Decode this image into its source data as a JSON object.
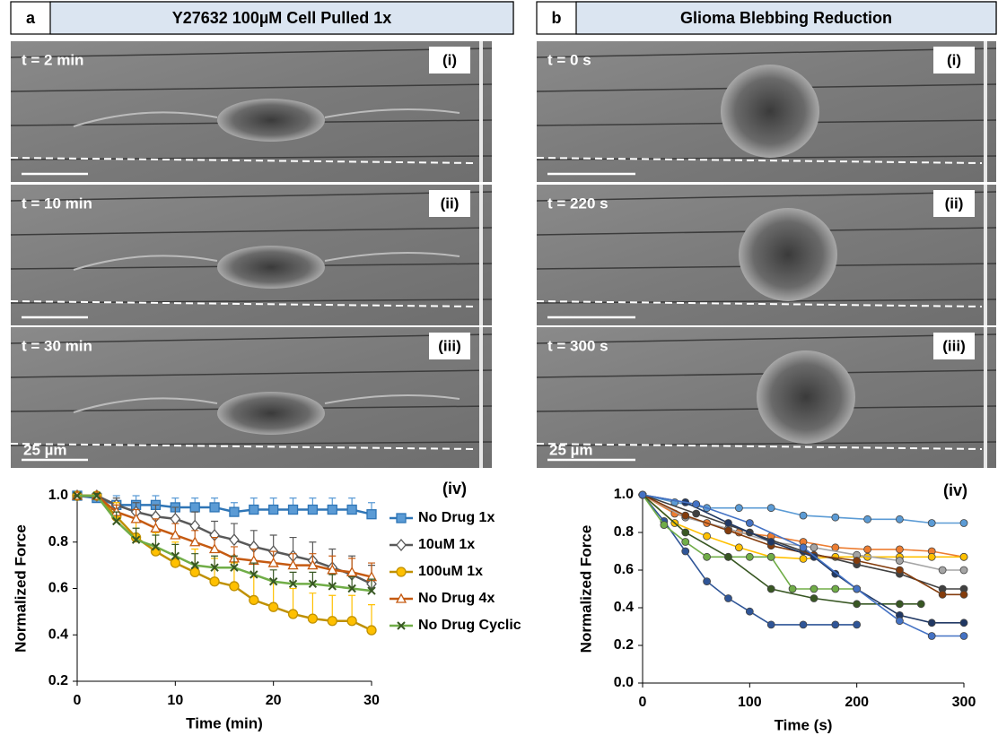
{
  "panels": [
    {
      "letter": "a",
      "title": "Y27632 100µM Cell Pulled 1x",
      "frames": [
        {
          "time": "t = 2 min",
          "label": "(i)"
        },
        {
          "time": "t = 10 min",
          "label": "(ii)"
        },
        {
          "time": "t = 30 min",
          "label": "(iii)"
        }
      ],
      "scale_bar": "25 µm"
    },
    {
      "letter": "b",
      "title": "Glioma Blebbing Reduction",
      "frames": [
        {
          "time": "t = 0 s",
          "label": "(i)"
        },
        {
          "time": "t = 220 s",
          "label": "(ii)"
        },
        {
          "time": "t = 300 s",
          "label": "(iii)"
        }
      ],
      "scale_bar": "25 µm"
    }
  ],
  "chart_data": [
    {
      "type": "line",
      "annotation": "(iv)",
      "xlabel": "Time (min)",
      "ylabel": "Normalized Force",
      "legend": "right",
      "x": [
        0,
        2,
        4,
        6,
        8,
        10,
        12,
        14,
        16,
        18,
        20,
        22,
        24,
        26,
        28,
        30
      ],
      "xlim": [
        0,
        30
      ],
      "xticks": [
        0,
        10,
        20,
        30
      ],
      "ylim": [
        0.2,
        1
      ],
      "yticks": [
        0.2,
        0.4,
        0.6,
        0.8,
        {
          "value": 1,
          "label": "1.0"
        }
      ],
      "series": [
        {
          "name": "No Drug 1x",
          "color": "#2e75b6",
          "fill": "#5b9bd5",
          "marker": "square",
          "values": [
            1,
            0.99,
            0.96,
            0.96,
            0.96,
            0.95,
            0.95,
            0.95,
            0.93,
            0.94,
            0.94,
            0.94,
            0.94,
            0.94,
            0.94,
            0.92
          ],
          "errors": [
            0,
            0.02,
            0.04,
            0.04,
            0.04,
            0.04,
            0.04,
            0.04,
            0.04,
            0.05,
            0.05,
            0.05,
            0.05,
            0.05,
            0.05,
            0.05
          ]
        },
        {
          "name": "10uM 1x",
          "color": "#595959",
          "fill": "#ffffff",
          "marker": "diamond",
          "values": [
            1,
            1,
            0.96,
            0.93,
            0.91,
            0.9,
            0.87,
            0.83,
            0.81,
            0.78,
            0.76,
            0.74,
            0.72,
            0.69,
            0.66,
            0.62
          ],
          "errors": [
            0,
            0.01,
            0.03,
            0.04,
            0.05,
            0.05,
            0.06,
            0.06,
            0.07,
            0.07,
            0.07,
            0.08,
            0.08,
            0.08,
            0.08,
            0.08
          ]
        },
        {
          "name": "100uM 1x",
          "color": "#bf9000",
          "fill": "#ffc000",
          "marker": "circle",
          "values": [
            1,
            1,
            0.91,
            0.82,
            0.76,
            0.71,
            0.67,
            0.63,
            0.61,
            0.55,
            0.52,
            0.49,
            0.47,
            0.46,
            0.46,
            0.42
          ],
          "errors": [
            0,
            0.01,
            0.06,
            0.07,
            0.08,
            0.09,
            0.1,
            0.1,
            0.1,
            0.1,
            0.11,
            0.11,
            0.11,
            0.11,
            0.11,
            0.11
          ]
        },
        {
          "name": "No Drug 4x",
          "color": "#c55a11",
          "fill": "#ffffff",
          "marker": "triangle",
          "values": [
            1,
            1,
            0.93,
            0.9,
            0.86,
            0.83,
            0.8,
            0.77,
            0.73,
            0.72,
            0.71,
            0.7,
            0.7,
            0.68,
            0.67,
            0.65
          ],
          "errors": [
            0,
            0.01,
            0.03,
            0.04,
            0.04,
            0.05,
            0.05,
            0.05,
            0.05,
            0.05,
            0.05,
            0.05,
            0.05,
            0.06,
            0.06,
            0.06
          ]
        },
        {
          "name": "No Drug Cyclic",
          "color": "#70ad47",
          "fill": "#385723",
          "marker": "x",
          "values": [
            1,
            1,
            0.89,
            0.81,
            0.78,
            0.74,
            0.7,
            0.69,
            0.69,
            0.66,
            0.63,
            0.62,
            0.62,
            0.61,
            0.6,
            0.59
          ],
          "errors": [
            0,
            0.01,
            0.04,
            0.05,
            0.05,
            0.05,
            0.05,
            0.05,
            0.05,
            0.05,
            0.05,
            0.05,
            0.05,
            0.05,
            0.05,
            0.05
          ]
        }
      ]
    },
    {
      "type": "line",
      "annotation": "(iv)",
      "xlabel": "Time (s)",
      "ylabel": "Normalized Force",
      "xlim": [
        0,
        300
      ],
      "xticks": [
        0,
        100,
        200,
        300
      ],
      "ylim": [
        0,
        1
      ],
      "yticks": [
        {
          "value": 0,
          "label": "0.0"
        },
        0.2,
        0.4,
        0.6,
        0.8,
        {
          "value": 1,
          "label": "1.0"
        }
      ],
      "series": [
        {
          "color": "#5b9bd5",
          "marker": "circle",
          "x": [
            0,
            30,
            60,
            90,
            120,
            150,
            180,
            210,
            240,
            270,
            300
          ],
          "values": [
            1,
            0.96,
            0.93,
            0.93,
            0.93,
            0.89,
            0.88,
            0.87,
            0.87,
            0.85,
            0.85
          ]
        },
        {
          "color": "#2f5597",
          "marker": "circle",
          "x": [
            0,
            20,
            40,
            60,
            80,
            100,
            120,
            150,
            180,
            200
          ],
          "values": [
            1,
            0.86,
            0.7,
            0.54,
            0.45,
            0.38,
            0.31,
            0.31,
            0.31,
            0.31
          ]
        },
        {
          "color": "#ed7d31",
          "marker": "circle",
          "x": [
            0,
            30,
            60,
            90,
            120,
            150,
            180,
            210,
            240,
            270,
            300
          ],
          "values": [
            1,
            0.9,
            0.85,
            0.8,
            0.78,
            0.75,
            0.72,
            0.71,
            0.71,
            0.7,
            0.67
          ]
        },
        {
          "color": "#ffc000",
          "marker": "circle",
          "x": [
            0,
            30,
            60,
            90,
            120,
            150,
            180,
            210,
            240,
            270,
            300
          ],
          "values": [
            1,
            0.85,
            0.78,
            0.72,
            0.67,
            0.66,
            0.67,
            0.67,
            0.67,
            0.67,
            0.67
          ]
        },
        {
          "color": "#a5a5a5",
          "marker": "circle",
          "x": [
            0,
            40,
            80,
            120,
            160,
            200,
            240,
            280,
            300
          ],
          "values": [
            1,
            0.88,
            0.82,
            0.75,
            0.72,
            0.68,
            0.65,
            0.6,
            0.6
          ]
        },
        {
          "color": "#404040",
          "marker": "circle",
          "x": [
            0,
            50,
            100,
            150,
            200,
            240,
            280,
            300
          ],
          "values": [
            1,
            0.9,
            0.8,
            0.7,
            0.63,
            0.58,
            0.5,
            0.5
          ]
        },
        {
          "color": "#843c0c",
          "marker": "circle",
          "x": [
            0,
            40,
            80,
            120,
            160,
            200,
            240,
            280,
            300
          ],
          "values": [
            1,
            0.89,
            0.81,
            0.73,
            0.68,
            0.65,
            0.6,
            0.47,
            0.47
          ]
        },
        {
          "color": "#70ad47",
          "marker": "circle",
          "x": [
            0,
            20,
            40,
            60,
            80,
            100,
            120,
            140,
            160,
            180,
            200
          ],
          "values": [
            1,
            0.84,
            0.75,
            0.67,
            0.67,
            0.67,
            0.67,
            0.5,
            0.5,
            0.5,
            0.5
          ]
        },
        {
          "color": "#385723",
          "marker": "circle",
          "x": [
            0,
            40,
            80,
            120,
            160,
            200,
            240,
            260
          ],
          "values": [
            1,
            0.8,
            0.67,
            0.5,
            0.45,
            0.42,
            0.42,
            0.42
          ]
        },
        {
          "color": "#203864",
          "marker": "circle",
          "x": [
            0,
            40,
            80,
            120,
            160,
            180,
            200,
            240,
            270,
            300
          ],
          "values": [
            1,
            0.96,
            0.85,
            0.75,
            0.67,
            0.58,
            0.5,
            0.36,
            0.32,
            0.32
          ]
        },
        {
          "color": "#4472c4",
          "marker": "circle",
          "x": [
            0,
            50,
            100,
            150,
            200,
            240,
            270,
            300
          ],
          "values": [
            1,
            0.95,
            0.85,
            0.72,
            0.5,
            0.33,
            0.25,
            0.25
          ]
        }
      ]
    }
  ]
}
